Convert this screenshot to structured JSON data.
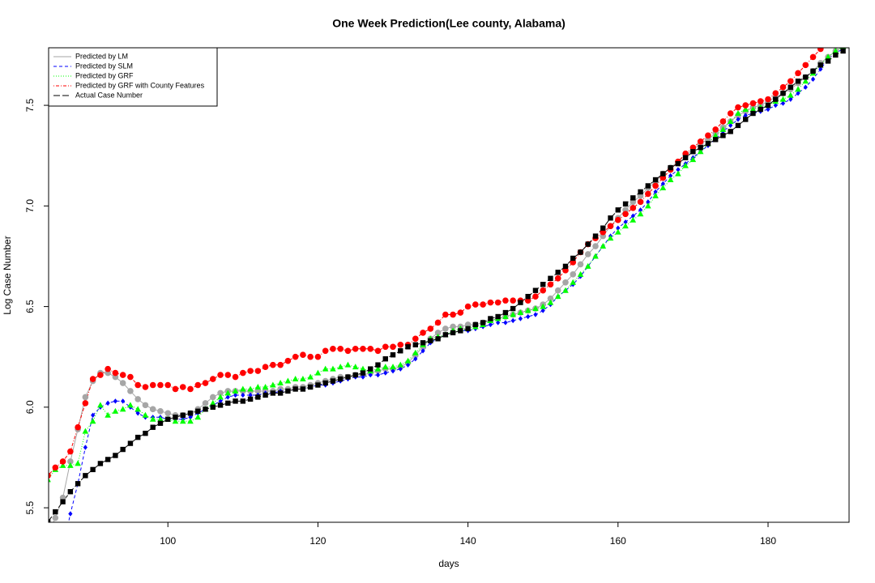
{
  "chart_data": {
    "type": "line",
    "title": "One Week Prediction(Lee county, Alabama)",
    "x_label": "days",
    "y_label": "Log Case Number",
    "x": [
      84,
      85,
      86,
      87,
      88,
      89,
      90,
      91,
      92,
      93,
      94,
      95,
      96,
      97,
      98,
      99,
      100,
      101,
      102,
      103,
      104,
      105,
      106,
      107,
      108,
      109,
      110,
      111,
      112,
      113,
      114,
      115,
      116,
      117,
      118,
      119,
      120,
      121,
      122,
      123,
      124,
      125,
      126,
      127,
      128,
      129,
      130,
      131,
      132,
      133,
      134,
      135,
      136,
      137,
      138,
      139,
      140,
      141,
      142,
      143,
      144,
      145,
      146,
      147,
      148,
      149,
      150,
      151,
      152,
      153,
      154,
      155,
      156,
      157,
      158,
      159,
      160,
      161,
      162,
      163,
      164,
      165,
      166,
      167,
      168,
      169,
      170,
      171,
      172,
      173,
      174,
      175,
      176,
      177,
      178,
      179,
      180,
      181,
      182,
      183,
      184,
      185,
      186,
      187,
      188,
      189,
      190
    ],
    "xlim": [
      84.1,
      190.8
    ],
    "xticks": [
      100,
      120,
      140,
      160,
      180
    ],
    "ylim": [
      5.428,
      7.786
    ],
    "yticks": [
      5.5,
      {
        "value": 6,
        "label": "6.0"
      },
      6.5,
      {
        "value": 7,
        "label": "7.0"
      },
      7.5
    ],
    "legend": "top-left",
    "series": [
      {
        "name": "Predicted by LM",
        "color": "#a6a6a6",
        "marker": "circle",
        "dash": "solid",
        "values": [
          5.36,
          5.45,
          5.55,
          5.73,
          5.89,
          6.05,
          6.13,
          6.17,
          6.17,
          6.15,
          6.12,
          6.08,
          6.04,
          6.01,
          5.99,
          5.98,
          5.97,
          5.96,
          5.96,
          5.97,
          5.99,
          6.02,
          6.05,
          6.07,
          6.08,
          6.08,
          6.08,
          6.08,
          6.08,
          6.08,
          6.08,
          6.09,
          6.09,
          6.1,
          6.1,
          6.11,
          6.12,
          6.13,
          6.14,
          6.15,
          6.15,
          6.16,
          6.16,
          6.17,
          6.18,
          6.19,
          6.19,
          6.2,
          6.22,
          6.26,
          6.3,
          6.34,
          6.37,
          6.39,
          6.4,
          6.4,
          6.41,
          6.41,
          6.42,
          6.43,
          6.44,
          6.45,
          6.46,
          6.47,
          6.48,
          6.49,
          6.51,
          6.54,
          6.58,
          6.62,
          6.66,
          6.71,
          6.76,
          6.8,
          6.85,
          6.9,
          6.94,
          6.98,
          7.02,
          7.05,
          7.09,
          7.12,
          7.16,
          7.19,
          7.22,
          7.25,
          7.28,
          7.31,
          7.33,
          7.36,
          7.39,
          7.42,
          7.45,
          7.47,
          7.49,
          7.5,
          7.52,
          7.54,
          7.56,
          7.58,
          7.61,
          7.64,
          7.67,
          7.71,
          7.74,
          7.77,
          7.79
        ]
      },
      {
        "name": "Predicted by SLM",
        "color": "#0000ff",
        "marker": "diamond",
        "dash": "dashed",
        "values": [
          null,
          null,
          5.3,
          5.47,
          5.62,
          5.8,
          5.96,
          6.0,
          6.02,
          6.03,
          6.03,
          6.0,
          5.97,
          5.95,
          5.95,
          5.95,
          5.94,
          5.94,
          5.94,
          5.95,
          5.97,
          5.99,
          6.01,
          6.03,
          6.05,
          6.06,
          6.06,
          6.06,
          6.06,
          6.07,
          6.07,
          6.08,
          6.08,
          6.09,
          6.09,
          6.1,
          6.11,
          6.11,
          6.12,
          6.13,
          6.14,
          6.15,
          6.15,
          6.16,
          6.16,
          6.17,
          6.18,
          6.19,
          6.21,
          6.24,
          6.28,
          6.32,
          6.34,
          6.36,
          6.37,
          6.38,
          6.38,
          6.39,
          6.4,
          6.41,
          6.42,
          6.42,
          6.43,
          6.44,
          6.45,
          6.46,
          6.48,
          6.51,
          6.55,
          6.58,
          6.61,
          6.65,
          6.7,
          6.75,
          6.8,
          6.85,
          6.89,
          6.92,
          6.95,
          6.98,
          7.02,
          7.07,
          7.11,
          7.15,
          7.18,
          7.21,
          7.24,
          7.27,
          7.3,
          7.33,
          7.37,
          7.4,
          7.43,
          7.45,
          7.46,
          7.47,
          7.48,
          7.5,
          7.51,
          7.53,
          7.56,
          7.59,
          7.63,
          7.68,
          7.73,
          7.76,
          7.78
        ]
      },
      {
        "name": "Predicted by GRF",
        "color": "#00ff00",
        "marker": "triangle",
        "dash": "dotted",
        "values": [
          5.64,
          5.69,
          5.71,
          5.71,
          5.72,
          5.88,
          5.93,
          6.01,
          5.96,
          5.98,
          5.99,
          6.01,
          5.99,
          5.96,
          5.94,
          5.94,
          5.94,
          5.93,
          5.93,
          5.93,
          5.95,
          5.99,
          6.02,
          6.05,
          6.07,
          6.08,
          6.09,
          6.09,
          6.1,
          6.1,
          6.11,
          6.12,
          6.13,
          6.14,
          6.14,
          6.15,
          6.17,
          6.19,
          6.19,
          6.2,
          6.21,
          6.2,
          6.19,
          6.18,
          6.19,
          6.2,
          6.2,
          6.21,
          6.23,
          6.27,
          6.31,
          6.34,
          6.35,
          6.36,
          6.38,
          6.39,
          6.39,
          6.4,
          6.41,
          6.43,
          6.44,
          6.45,
          6.46,
          6.47,
          6.48,
          6.49,
          6.5,
          6.52,
          6.55,
          6.58,
          6.62,
          6.66,
          6.7,
          6.75,
          6.8,
          6.84,
          6.87,
          6.9,
          6.93,
          6.96,
          7.0,
          7.05,
          7.09,
          7.13,
          7.16,
          7.2,
          7.23,
          7.27,
          7.31,
          7.35,
          7.38,
          7.42,
          7.46,
          7.48,
          7.48,
          7.49,
          7.5,
          7.52,
          7.53,
          7.55,
          7.58,
          7.62,
          7.66,
          7.7,
          7.74,
          7.77,
          7.79
        ]
      },
      {
        "name": "Predicted by GRF with County Features",
        "color": "#ff0000",
        "marker": "circle",
        "dash": "dotdash",
        "values": [
          5.66,
          5.7,
          5.73,
          5.78,
          5.9,
          6.02,
          6.14,
          6.16,
          6.19,
          6.17,
          6.16,
          6.15,
          6.11,
          6.1,
          6.11,
          6.11,
          6.11,
          6.09,
          6.1,
          6.09,
          6.11,
          6.12,
          6.14,
          6.16,
          6.16,
          6.15,
          6.17,
          6.18,
          6.18,
          6.2,
          6.21,
          6.21,
          6.23,
          6.25,
          6.26,
          6.25,
          6.25,
          6.28,
          6.29,
          6.29,
          6.28,
          6.29,
          6.29,
          6.29,
          6.28,
          6.3,
          6.3,
          6.31,
          6.31,
          6.34,
          6.37,
          6.39,
          6.42,
          6.46,
          6.46,
          6.47,
          6.5,
          6.51,
          6.51,
          6.52,
          6.52,
          6.53,
          6.53,
          6.53,
          6.53,
          6.55,
          6.58,
          6.61,
          6.64,
          6.68,
          6.72,
          6.77,
          6.81,
          6.84,
          6.87,
          6.9,
          6.93,
          6.96,
          6.99,
          7.02,
          7.06,
          7.1,
          7.14,
          7.18,
          7.22,
          7.26,
          7.29,
          7.32,
          7.35,
          7.38,
          7.42,
          7.46,
          7.49,
          7.5,
          7.51,
          7.52,
          7.53,
          7.56,
          7.59,
          7.62,
          7.66,
          7.7,
          7.74,
          7.78,
          7.8,
          7.81,
          7.82
        ]
      },
      {
        "name": "Actual Case Number",
        "color": "#000000",
        "marker": "square",
        "dash": "longdash",
        "values": [
          5.43,
          5.48,
          5.53,
          5.58,
          5.62,
          5.66,
          5.69,
          5.72,
          5.74,
          5.76,
          5.79,
          5.82,
          5.85,
          5.87,
          5.9,
          5.92,
          5.94,
          5.95,
          5.96,
          5.97,
          5.98,
          5.99,
          6.0,
          6.01,
          6.02,
          6.03,
          6.03,
          6.04,
          6.05,
          6.06,
          6.07,
          6.07,
          6.08,
          6.09,
          6.09,
          6.1,
          6.11,
          6.12,
          6.13,
          6.14,
          6.15,
          6.16,
          6.17,
          6.19,
          6.21,
          6.24,
          6.26,
          6.28,
          6.3,
          6.31,
          6.32,
          6.33,
          6.34,
          6.36,
          6.37,
          6.38,
          6.39,
          6.41,
          6.42,
          6.44,
          6.45,
          6.47,
          6.49,
          6.52,
          6.55,
          6.58,
          6.61,
          6.64,
          6.67,
          6.7,
          6.74,
          6.77,
          6.81,
          6.85,
          6.89,
          6.94,
          6.98,
          7.01,
          7.04,
          7.07,
          7.1,
          7.13,
          7.16,
          7.19,
          7.21,
          7.24,
          7.27,
          7.29,
          7.31,
          7.33,
          7.35,
          7.37,
          7.4,
          7.43,
          7.46,
          7.48,
          7.5,
          7.53,
          7.56,
          7.59,
          7.62,
          7.64,
          7.67,
          7.7,
          7.72,
          7.75,
          7.77
        ]
      }
    ]
  }
}
